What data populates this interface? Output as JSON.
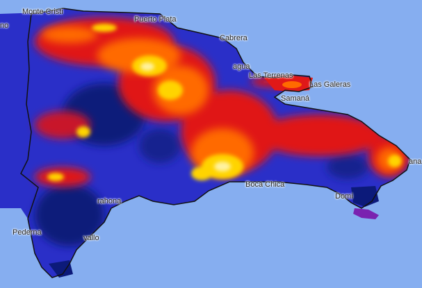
{
  "map": {
    "colors": {
      "sea": "#86aef0",
      "very_low": "#0c1a7a",
      "low": "#2a2fc8",
      "medium_low": "#6a1fb0",
      "medium": "#e01818",
      "high": "#ff6a00",
      "very_high": "#ffd400",
      "peak": "#fff2a0",
      "island_purple": "#7a22b0",
      "border": "#111111"
    },
    "labels": [
      {
        "id": "monte-cristi",
        "text": "Monte Cristi"
      },
      {
        "id": "puerto-plata",
        "text": "Puerto Plata"
      },
      {
        "id": "cabrera",
        "text": "Cabrera"
      },
      {
        "id": "nagua",
        "text": "agua"
      },
      {
        "id": "las-terrenas",
        "text": "Las Terrenas"
      },
      {
        "id": "las-galeras",
        "text": "Las Galeras"
      },
      {
        "id": "samana",
        "text": "Samaná"
      },
      {
        "id": "boca-chica",
        "text": "Boca Chica"
      },
      {
        "id": "dominicus",
        "text": "Domi"
      },
      {
        "id": "barahona",
        "text": "rahona"
      },
      {
        "id": "pedernales",
        "text": "Pederna"
      },
      {
        "id": "oviedo",
        "text": "vallo"
      },
      {
        "id": "punta-cana",
        "text": "ana"
      },
      {
        "id": "haiti-edge",
        "text": "no"
      }
    ]
  }
}
